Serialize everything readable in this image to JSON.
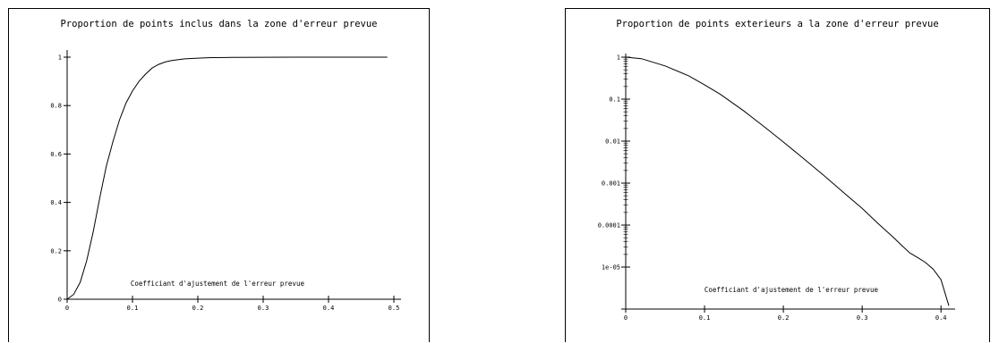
{
  "chart_data": [
    {
      "type": "line",
      "title": "Proportion de points inclus dans la zone d'erreur prevue",
      "xlabel": "Coefficiant d'ajustement de l'erreur prevue",
      "ylabel": "",
      "xlim": [
        0,
        0.5
      ],
      "ylim": [
        0,
        1
      ],
      "xticks": [
        "0",
        "0.1",
        "0.2",
        "0.3",
        "0.4",
        "0.5"
      ],
      "yticks": [
        "0",
        "0.2",
        "0.4",
        "0.6",
        "0.8",
        "1"
      ],
      "series": [
        {
          "x": [
            0,
            0.01,
            0.02,
            0.03,
            0.04,
            0.05,
            0.06,
            0.07,
            0.08,
            0.09,
            0.1,
            0.11,
            0.12,
            0.13,
            0.14,
            0.15,
            0.16,
            0.18,
            0.2,
            0.22,
            0.25,
            0.3,
            0.35,
            0.4,
            0.45,
            0.49
          ],
          "y": [
            0,
            0.02,
            0.07,
            0.16,
            0.28,
            0.42,
            0.55,
            0.65,
            0.74,
            0.81,
            0.86,
            0.9,
            0.93,
            0.955,
            0.97,
            0.98,
            0.986,
            0.993,
            0.996,
            0.998,
            0.999,
            0.9995,
            1,
            1,
            1,
            1
          ]
        }
      ]
    },
    {
      "type": "line",
      "title": "Proportion de points exterieurs a la zone d'erreur prevue",
      "xlabel": "Coefficiant d'ajustement de l'erreur prevue",
      "ylabel": "",
      "xlim": [
        0,
        0.41
      ],
      "ylim": [
        1e-06,
        1
      ],
      "yscale": "log",
      "xticks": [
        "0",
        "0.1",
        "0.2",
        "0.3",
        "0.4"
      ],
      "yticks": [
        "1",
        "0.1",
        "0.01",
        "0.001",
        "0.0001",
        "1e-05"
      ],
      "series": [
        {
          "x": [
            0,
            0.02,
            0.05,
            0.08,
            0.1,
            0.12,
            0.15,
            0.18,
            0.2,
            0.22,
            0.25,
            0.28,
            0.3,
            0.32,
            0.34,
            0.35,
            0.36,
            0.37,
            0.38,
            0.39,
            0.4,
            0.41
          ],
          "y": [
            1,
            0.92,
            0.62,
            0.36,
            0.22,
            0.13,
            0.052,
            0.019,
            0.0095,
            0.0047,
            0.0016,
            0.00052,
            0.00025,
            0.00011,
            5e-05,
            3.3e-05,
            2.2e-05,
            1.7e-05,
            1.3e-05,
            9e-06,
            5e-06,
            1.2e-06
          ]
        }
      ]
    }
  ]
}
